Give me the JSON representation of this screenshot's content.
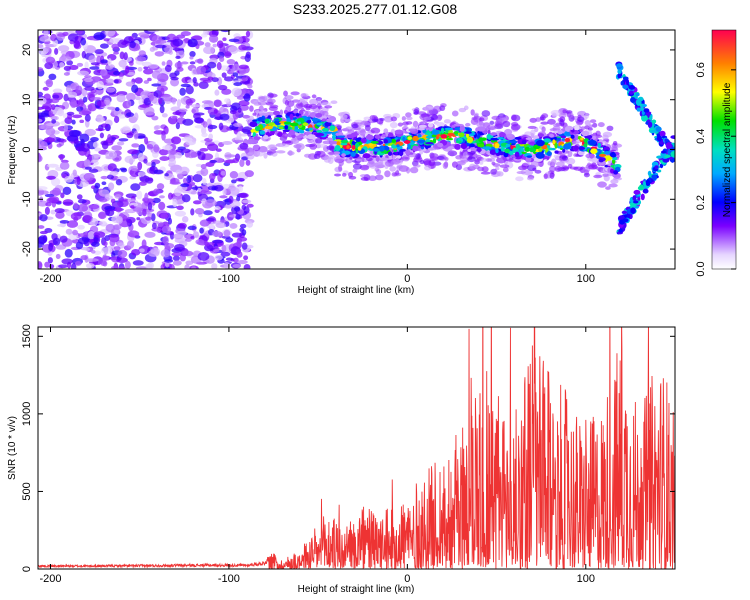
{
  "figure_title": "S233.2025.277.01.12.G08",
  "chart_data": [
    {
      "type": "heatmap",
      "title": "S233.2025.277.01.12.G08",
      "xlabel": "Height of straight line (km)",
      "ylabel": "Frequency (Hz)",
      "xlim": [
        -207,
        150
      ],
      "ylim": [
        -24,
        24
      ],
      "xticks": [
        -200,
        -100,
        0,
        100
      ],
      "yticks": [
        -20,
        -10,
        0,
        10,
        20
      ],
      "colorbar": {
        "label": "Normalized spectral amplitude",
        "range": [
          0,
          0.72
        ],
        "ticks": [
          0.0,
          0.2,
          0.4,
          0.6
        ]
      },
      "regions": [
        {
          "name": "noise",
          "x_range": [
            -207,
            -88
          ],
          "freq_range": [
            -24,
            24
          ],
          "amplitude": 0.12
        },
        {
          "name": "signal-ridge",
          "x_range": [
            -88,
            118
          ],
          "freq_center_approx": 1.5,
          "half_width_hz": 2.5,
          "peak_amplitude": 0.7
        },
        {
          "name": "trailing-branches",
          "x_range": [
            118,
            150
          ],
          "freq_range": [
            -20,
            18
          ],
          "amplitude": 0.25
        }
      ]
    },
    {
      "type": "line",
      "xlabel": "Height of straight line (km)",
      "ylabel": "SNR (10 * v/v)",
      "xlim": [
        -207,
        150
      ],
      "ylim": [
        0,
        1560
      ],
      "xticks": [
        -200,
        -100,
        0,
        100
      ],
      "yticks": [
        0,
        500,
        1000,
        1500
      ],
      "color": "#ee3333",
      "series": [
        {
          "name": "SNR",
          "x": [
            -207,
            -180,
            -150,
            -120,
            -90,
            -80,
            -75,
            -70,
            -60,
            -50,
            -45,
            -35,
            -25,
            -15,
            -5,
            0,
            10,
            20,
            30,
            40,
            50,
            60,
            70,
            80,
            90,
            100,
            110,
            120,
            130,
            140,
            145,
            150
          ],
          "y": [
            20,
            20,
            22,
            25,
            25,
            40,
            110,
            60,
            140,
            290,
            380,
            260,
            420,
            340,
            470,
            500,
            620,
            780,
            900,
            1530,
            1200,
            1000,
            1550,
            1250,
            1150,
            900,
            1100,
            1560,
            1000,
            1370,
            1300,
            820
          ]
        }
      ]
    }
  ]
}
